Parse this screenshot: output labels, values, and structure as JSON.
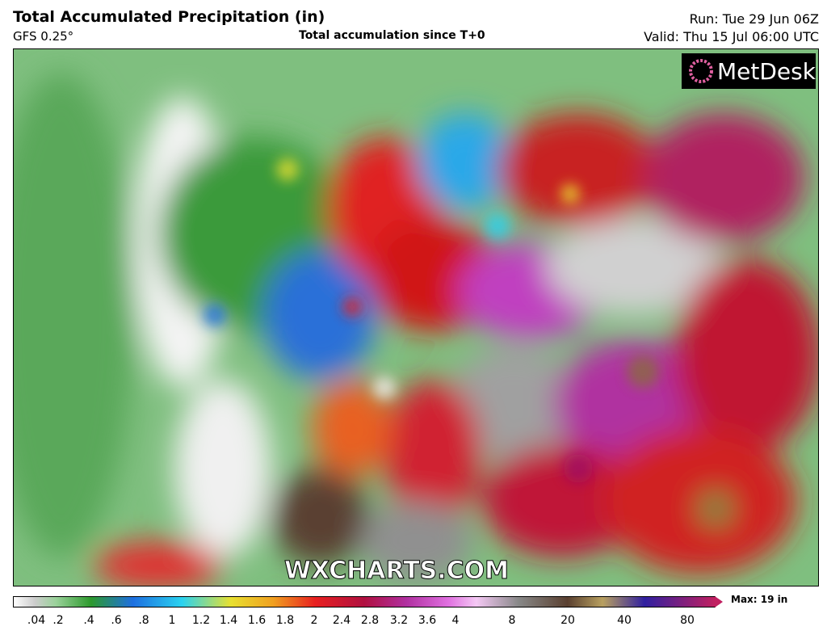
{
  "header": {
    "title": "Total Accumulated Precipitation (in)",
    "model": "GFS 0.25°",
    "subtitle": "Total accumulation since T+0",
    "run": "Run: Tue 29 Jun 06Z",
    "valid": "Valid: Thu 15 Jul 06:00 UTC"
  },
  "map": {
    "logo": "MetDesk",
    "watermark": "WXCHARTS.COM"
  },
  "legend": {
    "labels": [
      ".04",
      ".2",
      ".4",
      ".6",
      ".8",
      "1",
      "1.2",
      "1.4",
      "1.6",
      "1.8",
      "2",
      "2.4",
      "2.8",
      "3.2",
      "3.6",
      "4",
      "8",
      "20",
      "40",
      "80"
    ],
    "max": "Max: 19 in"
  }
}
